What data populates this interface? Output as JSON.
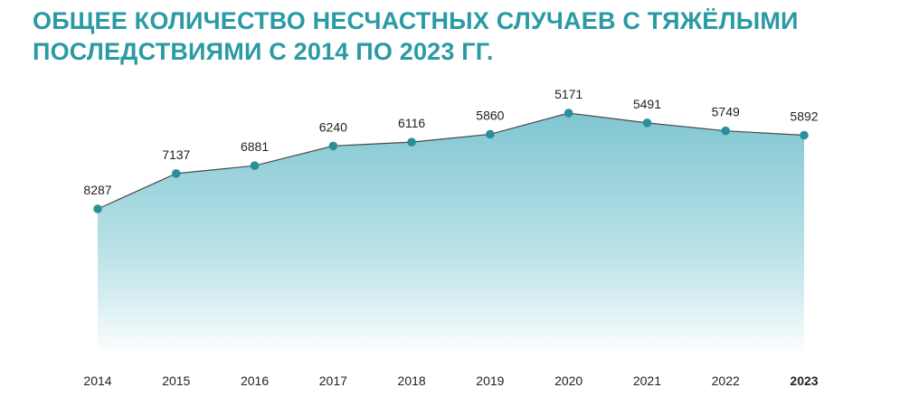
{
  "chart_data": {
    "type": "area",
    "title": "ОБЩЕЕ КОЛИЧЕСТВО НЕСЧАСТНЫХ СЛУЧАЕВ С ТЯЖЁЛЫМИ ПОСЛЕДСТВИЯМИ С 2014 ПО 2023 ГГ.",
    "categories": [
      "2014",
      "2015",
      "2016",
      "2017",
      "2018",
      "2019",
      "2020",
      "2021",
      "2022",
      "2023"
    ],
    "values": [
      8287,
      7137,
      6881,
      6240,
      6116,
      5860,
      5171,
      5491,
      5749,
      5892
    ],
    "highlight_category": "2023",
    "xlabel": "",
    "ylabel": "",
    "grid": false,
    "legend": "none",
    "colors": {
      "title": "#2a9aa3",
      "marker": "#2a8f99",
      "line": "#4a4a4a",
      "area_top": "#7fc6d1",
      "area_bottom": "#ffffff"
    }
  }
}
